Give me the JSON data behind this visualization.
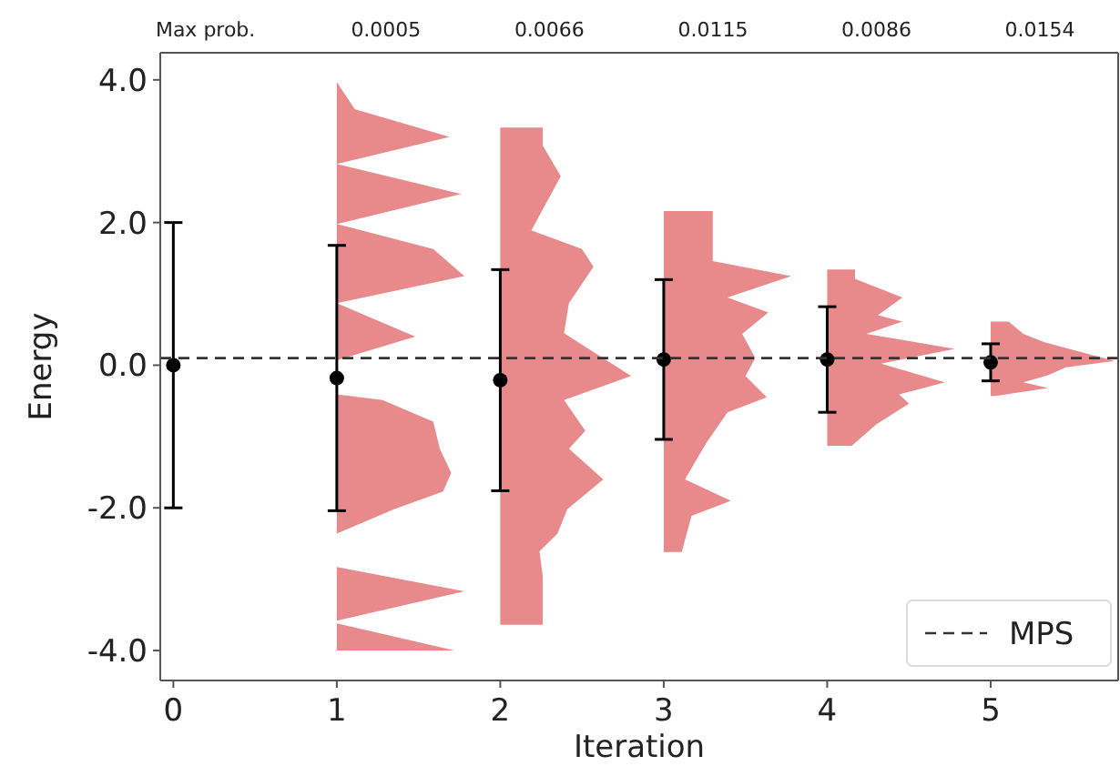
{
  "chart_data": {
    "type": "area",
    "xlabel": "Iteration",
    "ylabel": "Energy",
    "xlim": [
      -0.08,
      5.78
    ],
    "xticks": [
      0,
      1,
      2,
      3,
      4,
      5
    ],
    "ylim": [
      -4.42,
      4.38
    ],
    "yticks": [
      {
        "value": 4,
        "label": "4.0"
      },
      {
        "value": 2,
        "label": "2.0"
      },
      {
        "value": 0,
        "label": "0.0"
      },
      {
        "value": -2,
        "label": "-2.0"
      },
      {
        "value": -4,
        "label": "-4.0"
      }
    ],
    "annotations": [
      "Max prob.",
      "0.0005",
      "0.0066",
      "0.0115",
      "0.0086",
      "0.0154"
    ],
    "grid": false,
    "legend": "bottom right",
    "series": [
      {
        "color": "#e8898b",
        "x": [
          1.0,
          1.0,
          1.11,
          1.69,
          1.0,
          1.76,
          1.0,
          1.59,
          1.78,
          1.0,
          1.48,
          1.0,
          1.0,
          1.28,
          1.59,
          1.63,
          1.7,
          1.65,
          1.35,
          1.0,
          1.0,
          1.78,
          1.0,
          1.0,
          1.72,
          1.0
        ],
        "values": [
          3.97,
          3.97,
          3.59,
          3.2,
          2.82,
          2.4,
          1.98,
          1.63,
          1.25,
          0.87,
          0.4,
          0.07,
          -0.41,
          -0.49,
          -0.79,
          -1.17,
          -1.51,
          -1.77,
          -2.02,
          -2.36,
          -2.83,
          -3.17,
          -3.58,
          -3.62,
          -4.0,
          -4.0
        ]
      },
      {
        "color": "#e8898b",
        "x": [
          2.0,
          2.26,
          2.26,
          2.37,
          2.19,
          2.5,
          2.57,
          2.42,
          2.39,
          2.8,
          2.39,
          2.52,
          2.42,
          2.63,
          2.41,
          2.35,
          2.24,
          2.26,
          2.26,
          2.0
        ],
        "values": [
          3.33,
          3.33,
          3.08,
          2.65,
          1.89,
          1.63,
          1.38,
          0.87,
          0.45,
          -0.15,
          -0.49,
          -0.92,
          -1.17,
          -1.6,
          -2.02,
          -2.36,
          -2.61,
          -2.96,
          -3.64,
          -3.64
        ]
      },
      {
        "color": "#e8898b",
        "x": [
          3.0,
          3.3,
          3.3,
          3.3,
          3.78,
          3.39,
          3.64,
          3.48,
          3.56,
          3.5,
          3.63,
          3.39,
          3.26,
          3.13,
          3.41,
          3.17,
          3.11,
          3.0
        ],
        "values": [
          2.16,
          2.16,
          1.8,
          1.46,
          1.25,
          0.95,
          0.74,
          0.44,
          0.1,
          -0.15,
          -0.45,
          -0.66,
          -1.09,
          -1.6,
          -1.9,
          -2.11,
          -2.62,
          -2.62
        ]
      },
      {
        "color": "#e8898b",
        "x": [
          4.0,
          4.17,
          4.17,
          4.46,
          4.31,
          4.46,
          4.24,
          4.78,
          4.33,
          4.72,
          4.44,
          4.5,
          4.3,
          4.15,
          4.0
        ],
        "values": [
          1.34,
          1.34,
          1.21,
          0.95,
          0.7,
          0.61,
          0.44,
          0.23,
          0.02,
          -0.24,
          -0.41,
          -0.54,
          -0.83,
          -1.13,
          -1.13
        ]
      },
      {
        "color": "#e8898b",
        "x": [
          5.0,
          5.11,
          5.2,
          5.33,
          5.61,
          5.76,
          5.46,
          5.35,
          5.2,
          5.35,
          5.03,
          5.0
        ],
        "values": [
          0.61,
          0.61,
          0.44,
          0.32,
          0.15,
          0.06,
          -0.03,
          -0.14,
          -0.24,
          -0.32,
          -0.43,
          -0.43
        ]
      },
      {
        "type": "scatter",
        "marker": "circle",
        "color": "#000000",
        "x": [
          0,
          1,
          2,
          3,
          4,
          5
        ],
        "values": [
          0,
          -0.18,
          -0.21,
          0.08,
          0.08,
          0.04
        ],
        "errors": [
          2,
          1.86,
          1.55,
          1.12,
          0.74,
          0.26
        ]
      }
    ],
    "ref_lines": [
      {
        "axis": "y",
        "value": 0.1,
        "label": "MPS",
        "color": "#333333",
        "line_style": "dashed"
      }
    ]
  }
}
